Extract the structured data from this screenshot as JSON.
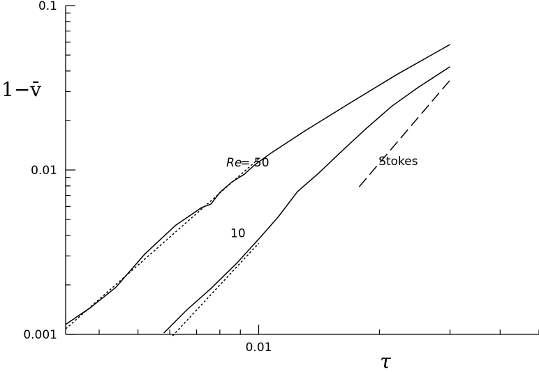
{
  "chart_data": {
    "type": "line",
    "x_scale": "log",
    "y_scale": "log",
    "xlim": [
      0.0033,
      0.05
    ],
    "ylim": [
      0.001,
      0.1
    ],
    "grid": false,
    "legend": "none",
    "xlabel": "τ",
    "ylabel": "1−v̄",
    "x_tick_labels": [
      {
        "value": 0.01,
        "label": "0.01"
      }
    ],
    "y_tick_labels": [
      {
        "value": 0.001,
        "label": "0.001"
      },
      {
        "value": 0.01,
        "label": "0.01"
      },
      {
        "value": 0.1,
        "label": "0.1"
      }
    ],
    "series": [
      {
        "style": "solid",
        "x": [
          0.0033,
          0.0038,
          0.0044,
          0.0052,
          0.0062,
          0.0072,
          0.0076,
          0.008,
          0.0083,
          0.0086,
          0.0092,
          0.0098,
          0.0108,
          0.013,
          0.017,
          0.022,
          0.03
        ],
        "y": [
          0.00115,
          0.00145,
          0.00193,
          0.00308,
          0.0046,
          0.0059,
          0.0062,
          0.0073,
          0.0079,
          0.0085,
          0.0094,
          0.0108,
          0.0128,
          0.0172,
          0.0258,
          0.0378,
          0.058
        ]
      },
      {
        "style": "solid",
        "x": [
          0.0058,
          0.0066,
          0.0076,
          0.0088,
          0.01,
          0.0112,
          0.0125,
          0.014,
          0.016,
          0.0185,
          0.0215,
          0.025,
          0.03
        ],
        "y": [
          0.00102,
          0.0014,
          0.0019,
          0.0027,
          0.0038,
          0.0052,
          0.0074,
          0.0094,
          0.0128,
          0.0178,
          0.0245,
          0.0318,
          0.0425
        ]
      },
      {
        "style": "dotted",
        "x": [
          0.0033,
          0.01
        ],
        "y": [
          0.00108,
          0.0117
        ]
      },
      {
        "style": "dotted",
        "x": [
          0.0061,
          0.01
        ],
        "y": [
          0.00098,
          0.00358
        ]
      },
      {
        "name": "Stokes",
        "style": "dashed",
        "x": [
          0.0178,
          0.03
        ],
        "y": [
          0.0079,
          0.0352
        ]
      }
    ],
    "annotations": [
      {
        "text": "Re",
        "italic": true,
        "x": 0.0083,
        "y": 0.0105
      },
      {
        "text": "= 50",
        "italic": false,
        "x": 0.009,
        "y": 0.0105
      },
      {
        "text": "10",
        "italic": false,
        "x": 0.0085,
        "y": 0.0039
      },
      {
        "text": "Stokes",
        "italic": false,
        "x": 0.0199,
        "y": 0.0107
      }
    ]
  }
}
